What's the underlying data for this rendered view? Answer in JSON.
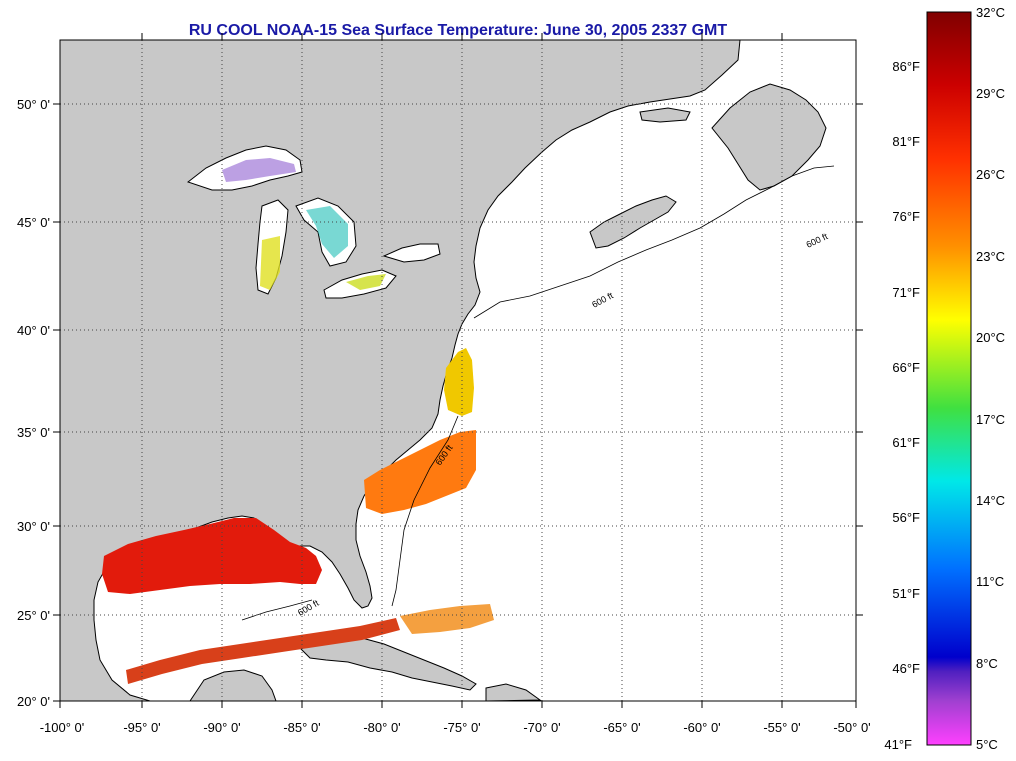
{
  "title": "RU COOL  NOAA-15  Sea Surface Temperature:  June 30, 2005 2337 GMT",
  "axes": {
    "lon_labels": [
      "-100° 0'",
      "-95° 0'",
      "-90° 0'",
      "-85° 0'",
      "-80° 0'",
      "-75° 0'",
      "-70° 0'",
      "-65° 0'",
      "-60° 0'",
      "-55° 0'",
      "-50° 0'"
    ],
    "lat_labels": [
      "50° 0'",
      "45° 0'",
      "40° 0'",
      "35° 0'",
      "30° 0'",
      "25° 0'",
      "20° 0'"
    ]
  },
  "contour_label": "600 ft",
  "colorbar": {
    "celsius_labels": [
      "32°C",
      "29°C",
      "26°C",
      "23°C",
      "20°C",
      "17°C",
      "14°C",
      "11°C",
      "8°C",
      "5°C"
    ],
    "fahrenheit_labels": [
      "86°F",
      "81°F",
      "76°F",
      "71°F",
      "66°F",
      "61°F",
      "56°F",
      "51°F",
      "46°F",
      "41°F"
    ],
    "colors": [
      "#800000",
      "#cc0000",
      "#ff3000",
      "#ff8c00",
      "#ffff00",
      "#40e040",
      "#00e8e8",
      "#0070ff",
      "#0000cc",
      "#a040d0",
      "#ff40ff"
    ]
  },
  "colors": {
    "land": "#c8c8c8",
    "ocean": "#ffffff",
    "title": "#1a1aa6",
    "warm_sst": "#e21b0c",
    "mid_sst": "#ff7a10",
    "cool_sst": "#f0c800"
  }
}
